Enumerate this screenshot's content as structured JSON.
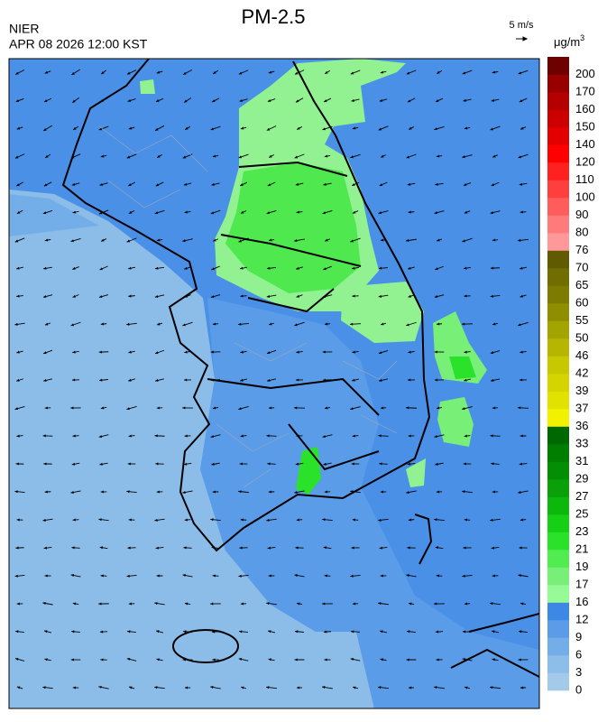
{
  "header": {
    "title": "PM-2.5",
    "agency": "NIER",
    "datetime": "APR 08 2026 12:00 KST"
  },
  "wind_scale": {
    "label": "5 m/s"
  },
  "colorbar": {
    "unit": "μg/m",
    "unit_sup": "3",
    "levels": [
      {
        "value": 0,
        "color": "#a3cbe9"
      },
      {
        "value": 3,
        "color": "#8dbde9"
      },
      {
        "value": 6,
        "color": "#74aee9"
      },
      {
        "value": 9,
        "color": "#5b9ce8"
      },
      {
        "value": 12,
        "color": "#3d88e6"
      },
      {
        "value": 16,
        "color": "#96fa96"
      },
      {
        "value": 17,
        "color": "#78f078"
      },
      {
        "value": 19,
        "color": "#50ec50"
      },
      {
        "value": 21,
        "color": "#2ae22a"
      },
      {
        "value": 23,
        "color": "#16d016"
      },
      {
        "value": 25,
        "color": "#0cb80c"
      },
      {
        "value": 27,
        "color": "#0aa00a"
      },
      {
        "value": 29,
        "color": "#038e03"
      },
      {
        "value": 31,
        "color": "#007e00"
      },
      {
        "value": 33,
        "color": "#006800"
      },
      {
        "value": 36,
        "color": "#f2f200"
      },
      {
        "value": 37,
        "color": "#e2e200"
      },
      {
        "value": 39,
        "color": "#d4d400"
      },
      {
        "value": 42,
        "color": "#c8c800"
      },
      {
        "value": 46,
        "color": "#b6b600"
      },
      {
        "value": 50,
        "color": "#a4a400"
      },
      {
        "value": 55,
        "color": "#8e8e00"
      },
      {
        "value": 60,
        "color": "#7e7c00"
      },
      {
        "value": 65,
        "color": "#706e00"
      },
      {
        "value": 70,
        "color": "#605a00"
      },
      {
        "value": 76,
        "color": "#ff9898"
      },
      {
        "value": 80,
        "color": "#ff7a7a"
      },
      {
        "value": 90,
        "color": "#ff5c5c"
      },
      {
        "value": 100,
        "color": "#ff3e3e"
      },
      {
        "value": 110,
        "color": "#ff2020"
      },
      {
        "value": 120,
        "color": "#ff0000"
      },
      {
        "value": 140,
        "color": "#e40000"
      },
      {
        "value": 150,
        "color": "#cc0000"
      },
      {
        "value": 160,
        "color": "#b40000"
      },
      {
        "value": 170,
        "color": "#980000"
      },
      {
        "value": 200,
        "color": "#6e0000"
      }
    ]
  }
}
